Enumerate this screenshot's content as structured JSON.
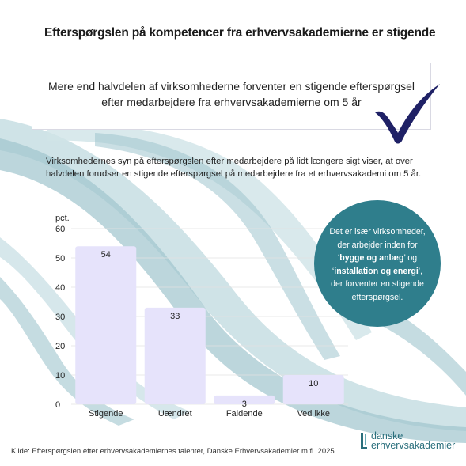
{
  "title": "Efterspørgslen på kompetencer fra erhvervsakademierne er stigende",
  "callout": {
    "line1": "Mere end halvdelen af virksomhederne forventer en stigende efterspørgsel",
    "line2": "efter medarbejdere fra erhvervsakademierne om 5 år"
  },
  "check_icon": "checkmark-icon",
  "description": "Virksomhedernes syn på efterspørgslen efter medarbejdere på lidt længere sigt viser, at over halvdelen forudser en stigende efterspørgsel på medarbejdere fra et erhvervsakademi om 5 år.",
  "bubble": {
    "line1": "Det er især virksomheder,",
    "line2": "der arbejder inden for",
    "quote_open": "‘",
    "highlight1": "bygge og anlæg",
    "quote_close1": "’ og",
    "quote_open2": "‘",
    "highlight2": "installation og energi",
    "quote_close2": "’,",
    "line4": "der forventer en stigende",
    "line5": "efterspørgsel."
  },
  "source": "Kilde: Efterspørgslen efter erhvervsakademiernes talenter, Danske Erhvervsakademier m.fl. 2025",
  "logo": {
    "line1": "danske",
    "line2": "erhvervsakademier"
  },
  "colors": {
    "bar": "#e6e3fb",
    "teal": "#2f7e8c",
    "wave_light": "#cfe3e7",
    "wave_mid": "#9fc5cd",
    "check": "#1f2166"
  },
  "chart_data": {
    "type": "bar",
    "categories": [
      "Stigende",
      "Uændret",
      "Faldende",
      "Ved ikke"
    ],
    "values": [
      54,
      33,
      3,
      10
    ],
    "unit_label": "pct.",
    "yticks": [
      0,
      10,
      20,
      30,
      40,
      50,
      60
    ],
    "ylim": [
      0,
      60
    ],
    "grid": true
  }
}
